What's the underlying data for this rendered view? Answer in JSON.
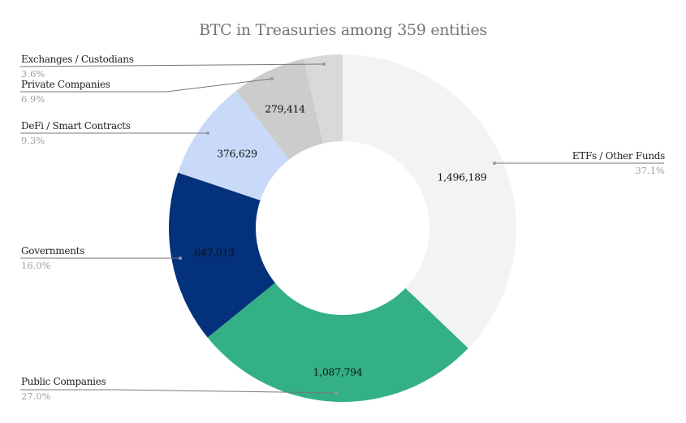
{
  "title": "BTC in Treasuries among 359 entities",
  "chart_data": {
    "type": "pie",
    "donut": true,
    "title": "BTC in Treasuries among 359 entities",
    "categories": [
      "ETFs / Other Funds",
      "Public Companies",
      "Governments",
      "DeFi / Smart Contracts",
      "Private Companies",
      "Exchanges / Custodians"
    ],
    "values": [
      1496189,
      1087794,
      647013,
      376629,
      279414,
      145000
    ],
    "value_labels": [
      "1,496,189",
      "1,087,794",
      "647,013",
      "376,629",
      "279,414",
      ""
    ],
    "percentages": [
      "37.1%",
      "27.0%",
      "16.0%",
      "9.3%",
      "6.9%",
      "3.6%"
    ],
    "colors": [
      "#f3f3f3",
      "#33b084",
      "#04317b",
      "#c9daf8",
      "#cccccc",
      "#d9d9d9"
    ],
    "legend_position": "labeled leader lines"
  },
  "labels": [
    {
      "name": "ETFs / Other Funds",
      "pct": "37.1%"
    },
    {
      "name": "Public Companies",
      "pct": "27.0%"
    },
    {
      "name": "Governments",
      "pct": "16.0%"
    },
    {
      "name": "DeFi / Smart Contracts",
      "pct": "9.3%"
    },
    {
      "name": "Private Companies",
      "pct": "6.9%"
    },
    {
      "name": "Exchanges / Custodians",
      "pct": "3.6%"
    }
  ],
  "values_text": [
    "1,496,189",
    "1,087,794",
    "647,013",
    "376,629",
    "279,414"
  ]
}
